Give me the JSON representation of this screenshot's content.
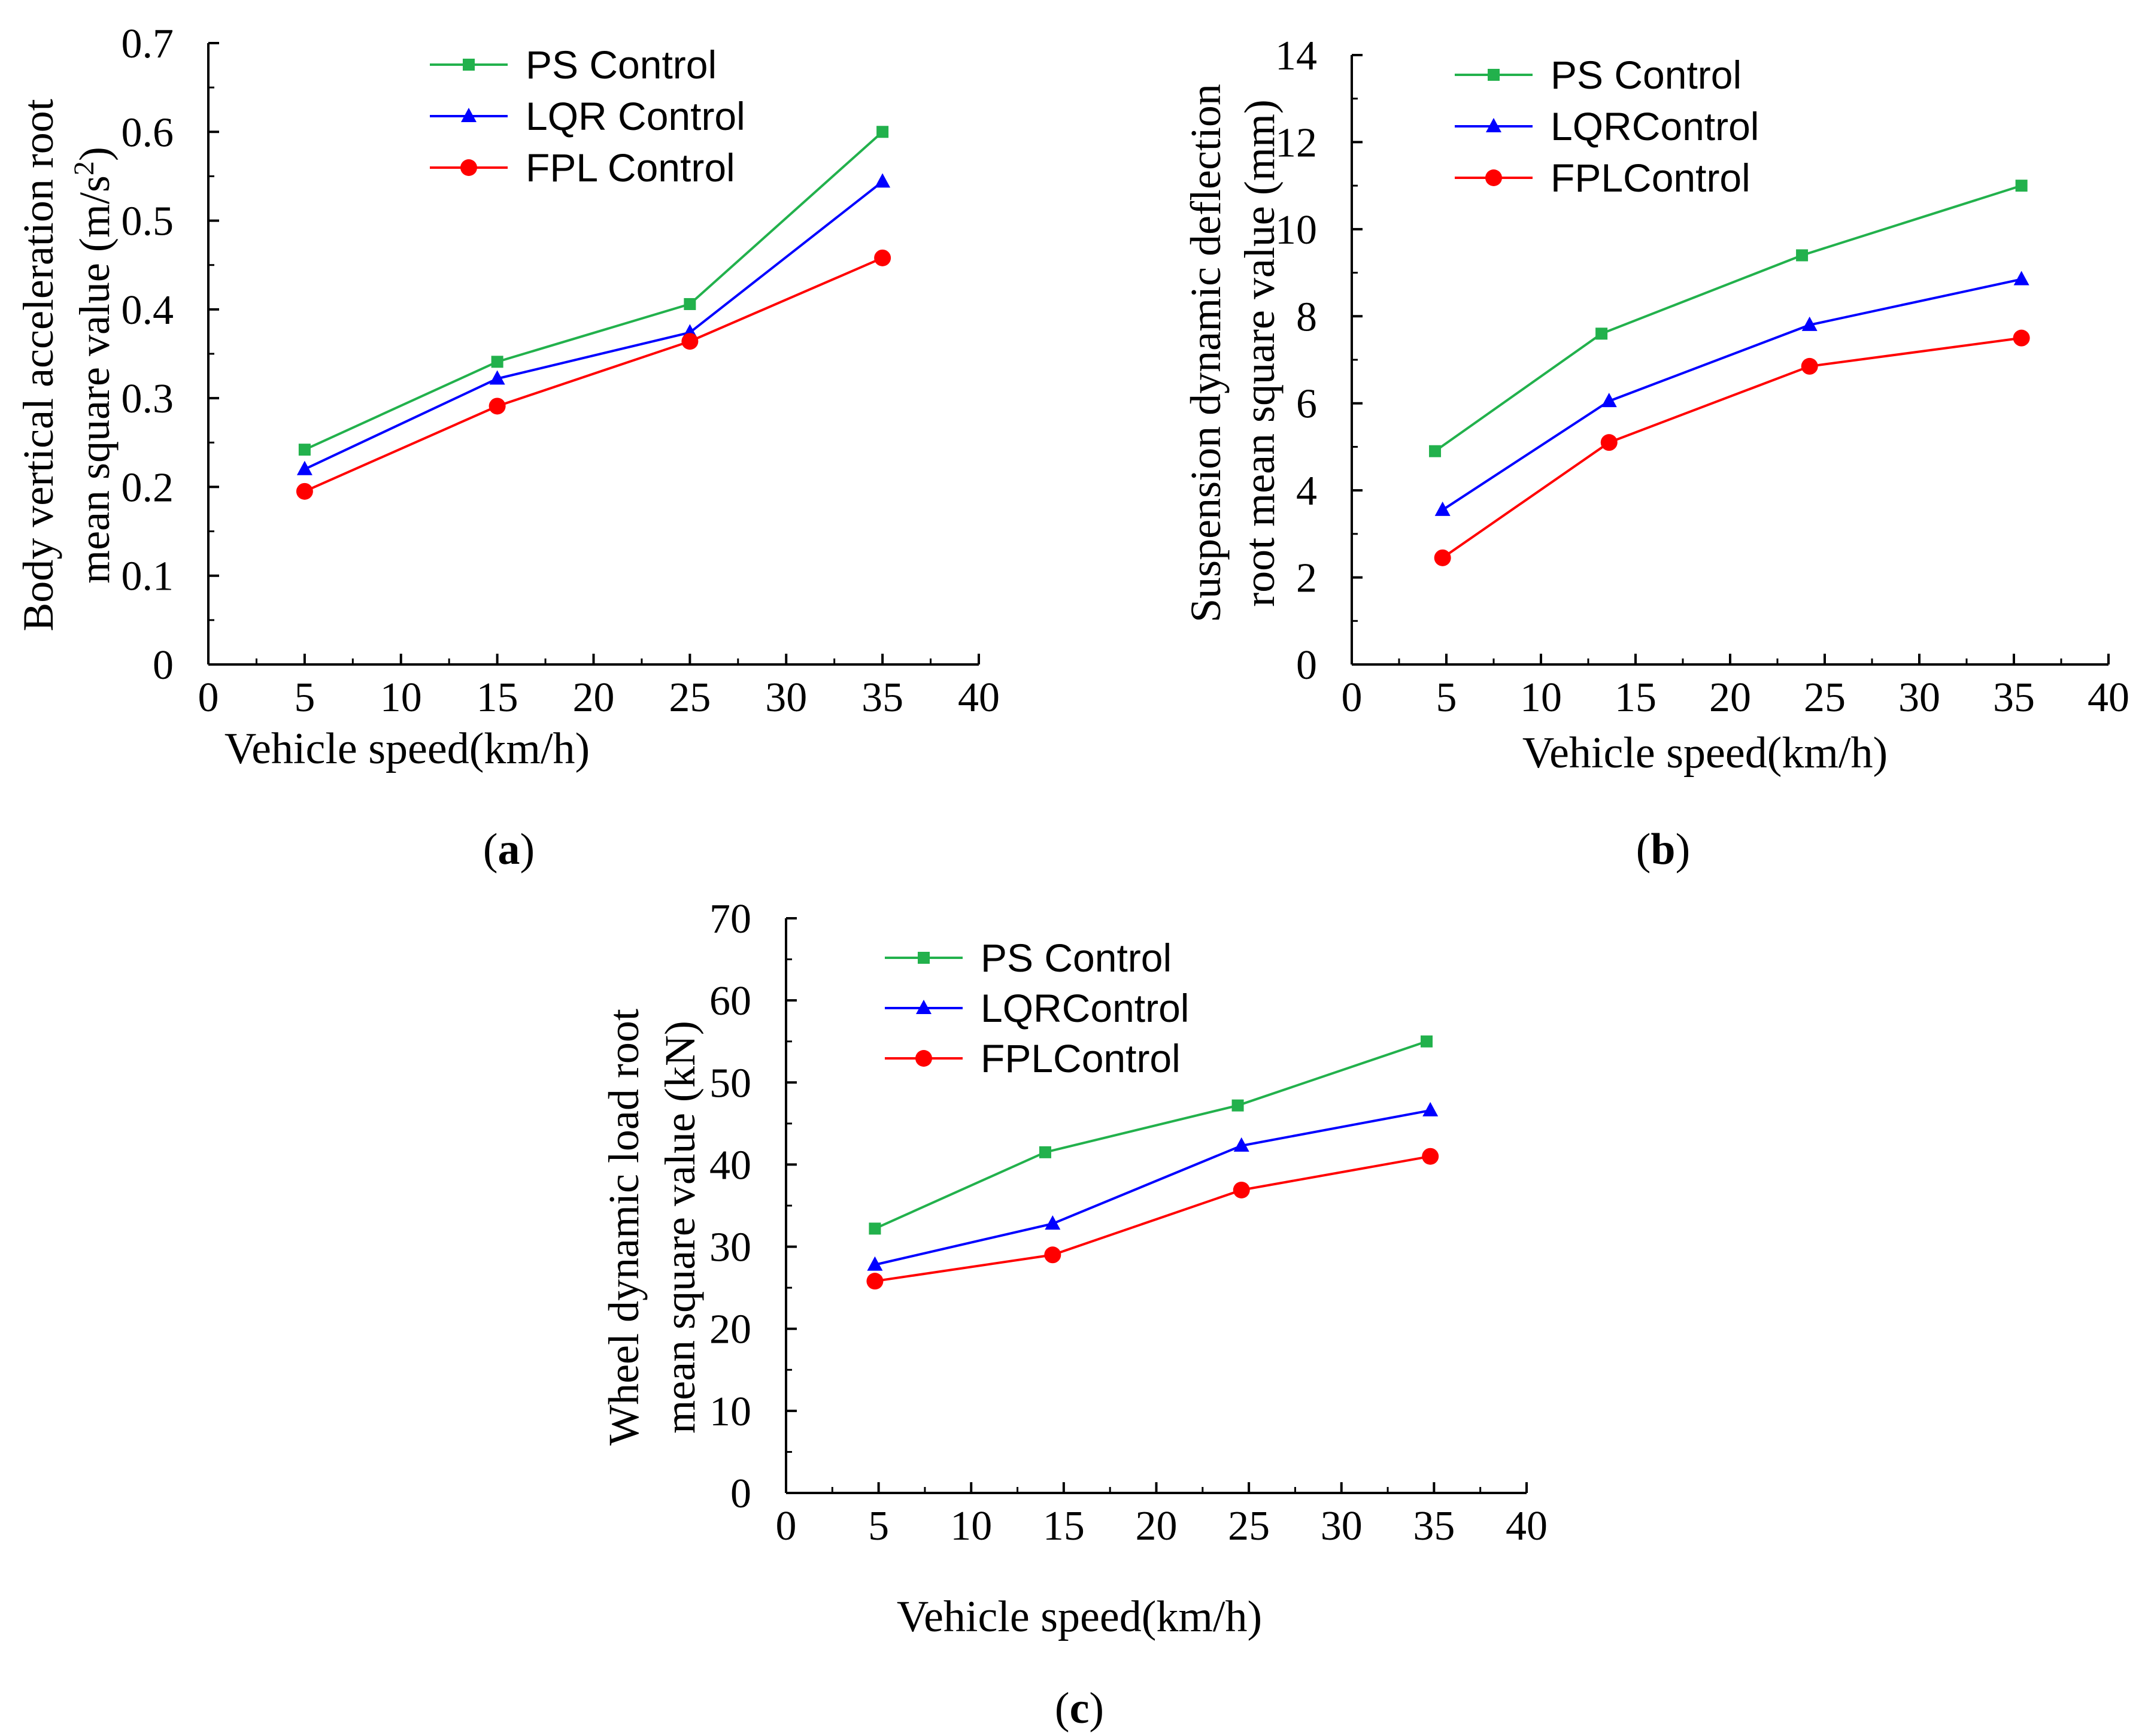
{
  "chart_data": [
    {
      "panel": "(a)",
      "panel_letter": "a",
      "type": "line",
      "title": "",
      "xlabel": "Vehicle speed(km/h)",
      "ylabel_line1": "Body vertical acceleration root",
      "ylabel_line2_prefix": "mean square value (m/s",
      "ylabel_line2_sup": "2",
      "ylabel_line2_suffix": ")",
      "xlim": [
        0,
        40
      ],
      "ylim": [
        0,
        0.7
      ],
      "x_ticks": [
        "0",
        "5",
        "10",
        "15",
        "20",
        "25",
        "30",
        "35",
        "40"
      ],
      "y_ticks": [
        "0",
        "0.1",
        "0.2",
        "0.3",
        "0.4",
        "0.5",
        "0.6",
        "0.7"
      ],
      "legend_position": "top-left",
      "series": [
        {
          "name": "PS Control",
          "color": "#22b14c",
          "marker": "square",
          "x": [
            5,
            15,
            25,
            35
          ],
          "y": [
            0.242,
            0.341,
            0.406,
            0.6
          ]
        },
        {
          "name": "LQR Control",
          "color": "#0000ff",
          "marker": "triangle",
          "x": [
            5,
            15,
            25,
            35
          ],
          "y": [
            0.22,
            0.322,
            0.374,
            0.544
          ]
        },
        {
          "name": "FPL Control",
          "color": "#ff0000",
          "marker": "circle",
          "x": [
            5,
            15,
            25,
            35
          ],
          "y": [
            0.195,
            0.291,
            0.364,
            0.458
          ]
        }
      ]
    },
    {
      "panel": "(b)",
      "panel_letter": "b",
      "type": "line",
      "title": "",
      "xlabel": "Vehicle speed(km/h)",
      "ylabel_line1": "Suspension dynamic deflection",
      "ylabel_line2": "root mean square value (mm)",
      "xlim": [
        0,
        40
      ],
      "ylim": [
        0,
        14
      ],
      "x_ticks": [
        "0",
        "5",
        "10",
        "15",
        "20",
        "25",
        "30",
        "35",
        "40"
      ],
      "y_ticks": [
        "0",
        "2",
        "4",
        "6",
        "8",
        "10",
        "12",
        "14"
      ],
      "legend_position": "top-left",
      "series": [
        {
          "name": "PS Control",
          "color": "#22b14c",
          "marker": "square",
          "x": [
            4.4,
            13.2,
            23.8,
            35.4
          ],
          "y": [
            4.9,
            7.6,
            9.4,
            11.0
          ]
        },
        {
          "name": "LQRControl",
          "color": "#0000ff",
          "marker": "triangle",
          "x": [
            4.8,
            13.6,
            24.2,
            35.4
          ],
          "y": [
            3.55,
            6.05,
            7.8,
            8.85
          ]
        },
        {
          "name": "FPLControl",
          "color": "#ff0000",
          "marker": "circle",
          "x": [
            4.8,
            13.6,
            24.2,
            35.4
          ],
          "y": [
            2.45,
            5.1,
            6.85,
            7.5
          ]
        }
      ]
    },
    {
      "panel": "(c)",
      "panel_letter": "c",
      "type": "line",
      "title": "",
      "xlabel": "Vehicle speed(km/h)",
      "ylabel_line1": "Wheel dynamic load root",
      "ylabel_line2": "mean square value (kN)",
      "xlim": [
        0,
        40
      ],
      "ylim": [
        0,
        70
      ],
      "x_ticks": [
        "0",
        "5",
        "10",
        "15",
        "20",
        "25",
        "30",
        "35",
        "40"
      ],
      "y_ticks": [
        "0",
        "10",
        "20",
        "30",
        "40",
        "50",
        "60",
        "70"
      ],
      "legend_position": "top-left",
      "series": [
        {
          "name": "PS Control",
          "color": "#22b14c",
          "marker": "square",
          "x": [
            4.8,
            14.0,
            24.4,
            34.6
          ],
          "y": [
            32.2,
            41.5,
            47.2,
            55.0
          ]
        },
        {
          "name": "LQRControl",
          "color": "#0000ff",
          "marker": "triangle",
          "x": [
            4.8,
            14.4,
            24.6,
            34.8
          ],
          "y": [
            27.8,
            32.8,
            42.3,
            46.6
          ]
        },
        {
          "name": "FPLControl",
          "color": "#ff0000",
          "marker": "circle",
          "x": [
            4.8,
            14.4,
            24.6,
            34.8
          ],
          "y": [
            25.8,
            29.0,
            36.9,
            41.0
          ]
        }
      ]
    }
  ]
}
